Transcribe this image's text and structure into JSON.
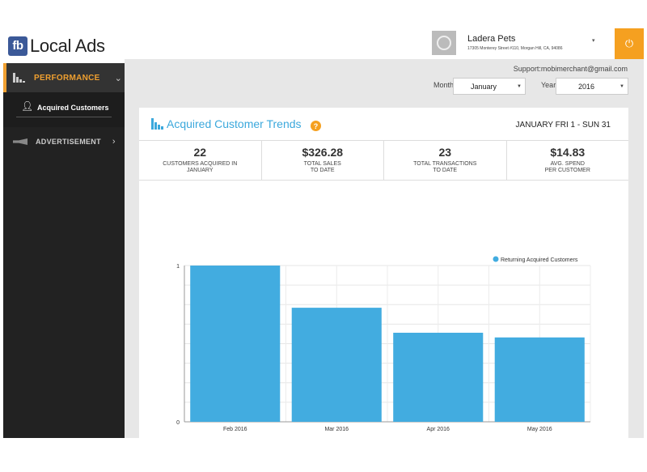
{
  "brand": {
    "logo": "fb",
    "name": "Local Ads"
  },
  "nav": {
    "performance": {
      "label": "PERFORMANCE",
      "icon": "bar-chart-icon",
      "chevron": "⌄"
    },
    "acquired": {
      "label": "Acquired Customers",
      "icon": "person-icon"
    },
    "advertisement": {
      "label": "ADVERTISEMENT",
      "icon": "megaphone-icon",
      "chevron": "›"
    }
  },
  "header": {
    "merchant_name": "Ladera Pets",
    "merchant_address": "17305 Monterey Street #110, Morgan Hill, CA, 94086",
    "dropdown_caret": "▾",
    "power_icon": "⏻"
  },
  "support_email": "Support:mobimerchant@gmail.com",
  "filters": {
    "month_label": "Month",
    "month_value": "January",
    "year_label": "Year",
    "year_value": "2016",
    "caret": "▼"
  },
  "card": {
    "title": "Acquired Customer Trends",
    "help_icon": "?",
    "date_range": "JANUARY FRI 1 - SUN 31"
  },
  "stats": [
    {
      "value": "22",
      "desc1": "CUSTOMERS ACQUIRED IN",
      "desc2": "JANUARY"
    },
    {
      "value": "$326.28",
      "desc1": "TOTAL SALES",
      "desc2": "TO DATE"
    },
    {
      "value": "23",
      "desc1": "TOTAL TRANSACTIONS",
      "desc2": "TO DATE"
    },
    {
      "value": "$14.83",
      "desc1": "AVG. SPEND",
      "desc2": "PER CUSTOMER"
    }
  ],
  "colors": {
    "accent": "#f0a030",
    "chart_blue": "#42ace0",
    "title_blue": "#3ba8dc",
    "power_orange": "#f5a020"
  },
  "chart_data": {
    "type": "bar",
    "categories": [
      "Feb 2016",
      "Mar 2016",
      "Apr 2016",
      "May 2016"
    ],
    "series": [
      {
        "name": "Returning Acquired Customers",
        "values": [
          1,
          0.73,
          0.57,
          0.54
        ]
      }
    ],
    "ylim": [
      0,
      1
    ],
    "y_ticks": [
      "0",
      "1"
    ],
    "legend": "top-right",
    "grid": true
  }
}
